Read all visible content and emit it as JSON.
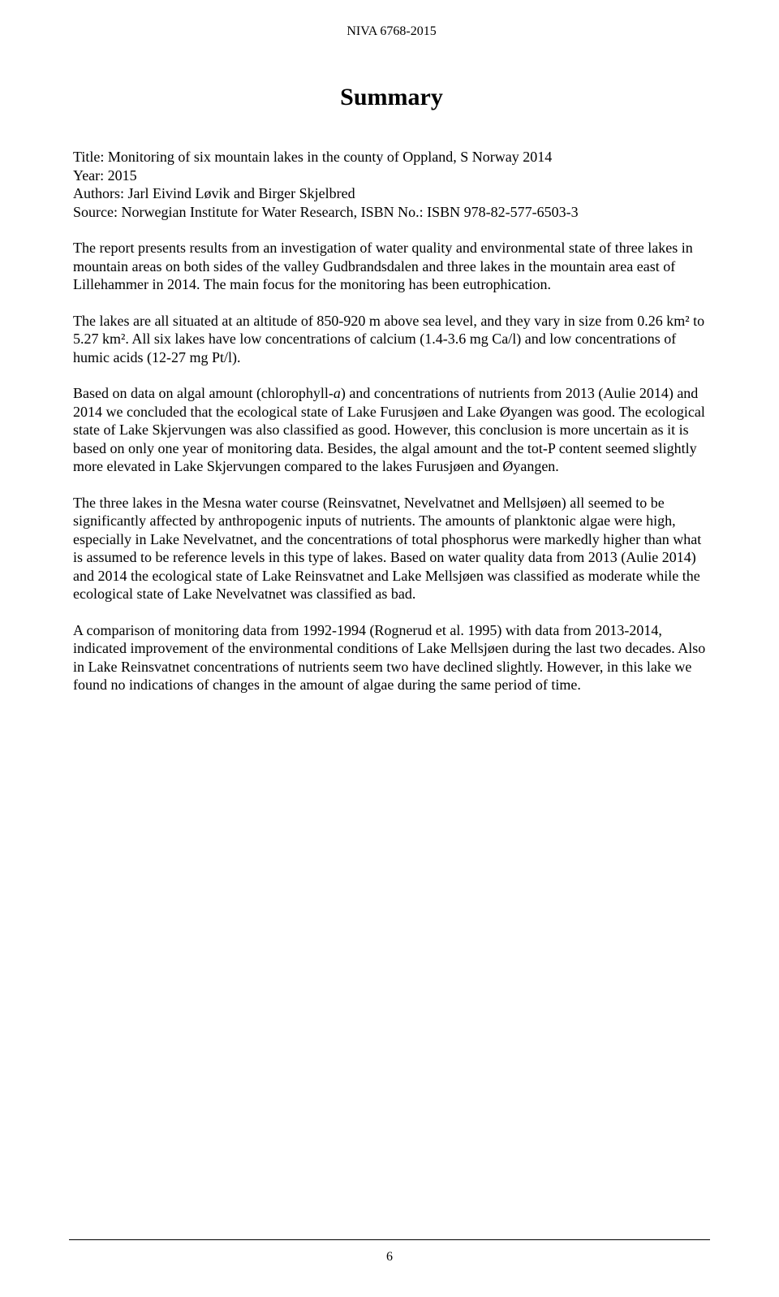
{
  "header": "NIVA 6768-2015",
  "title": "Summary",
  "meta": {
    "title_line": "Title: Monitoring of six mountain lakes in the county of Oppland, S Norway 2014",
    "year_line": "Year: 2015",
    "authors_line": "Authors: Jarl Eivind Løvik and Birger Skjelbred",
    "source_line": "Source: Norwegian Institute for Water Research, ISBN No.: ISBN 978-82-577-6503-3"
  },
  "para1": "The report presents results from an investigation of water quality and environmental state of three lakes in mountain areas on both sides of the valley Gudbrandsdalen and three lakes in the mountain area east of Lillehammer in 2014. The main focus for the monitoring has been eutrophication.",
  "para2": "The lakes are all situated at an altitude of 850-920 m above sea level, and they vary in size from 0.26 km² to 5.27 km². All six lakes have low concentrations of calcium (1.4-3.6 mg Ca/l) and low concentrations of humic acids (12-27 mg Pt/l).",
  "para3a": "Based on data on algal amount (chlorophyll-",
  "para3_italic": "a",
  "para3b": ") and concentrations of nutrients from 2013 (Aulie 2014) and 2014 we concluded that the ecological state of Lake Furusjøen and Lake Øyangen was good. The ecological state of Lake Skjervungen was also classified as good. However, this conclusion is more uncertain as it is based on only one year of monitoring data. Besides, the algal amount and the tot-P content seemed slightly more elevated in Lake Skjervungen compared to the lakes Furusjøen and Øyangen.",
  "para4": "The three lakes in the Mesna water course (Reinsvatnet, Nevelvatnet and Mellsjøen) all seemed to be significantly affected by anthropogenic inputs of nutrients. The amounts of planktonic algae were high, especially in Lake Nevelvatnet, and the concentrations of total phosphorus were markedly higher than what is assumed to be reference levels in this type of lakes. Based on water quality data from 2013 (Aulie 2014) and 2014 the ecological state of Lake Reinsvatnet and Lake Mellsjøen was classified as moderate while the ecological state of Lake Nevelvatnet was classified as bad.",
  "para5": "A comparison of monitoring data from 1992-1994 (Rognerud et al. 1995) with data from 2013-2014, indicated improvement of the environmental conditions of Lake Mellsjøen during the last two decades. Also in Lake Reinsvatnet concentrations of nutrients seem two have declined slightly. However, in this lake we found no indications of changes in the amount of algae during the same period of time.",
  "page_number": "6"
}
